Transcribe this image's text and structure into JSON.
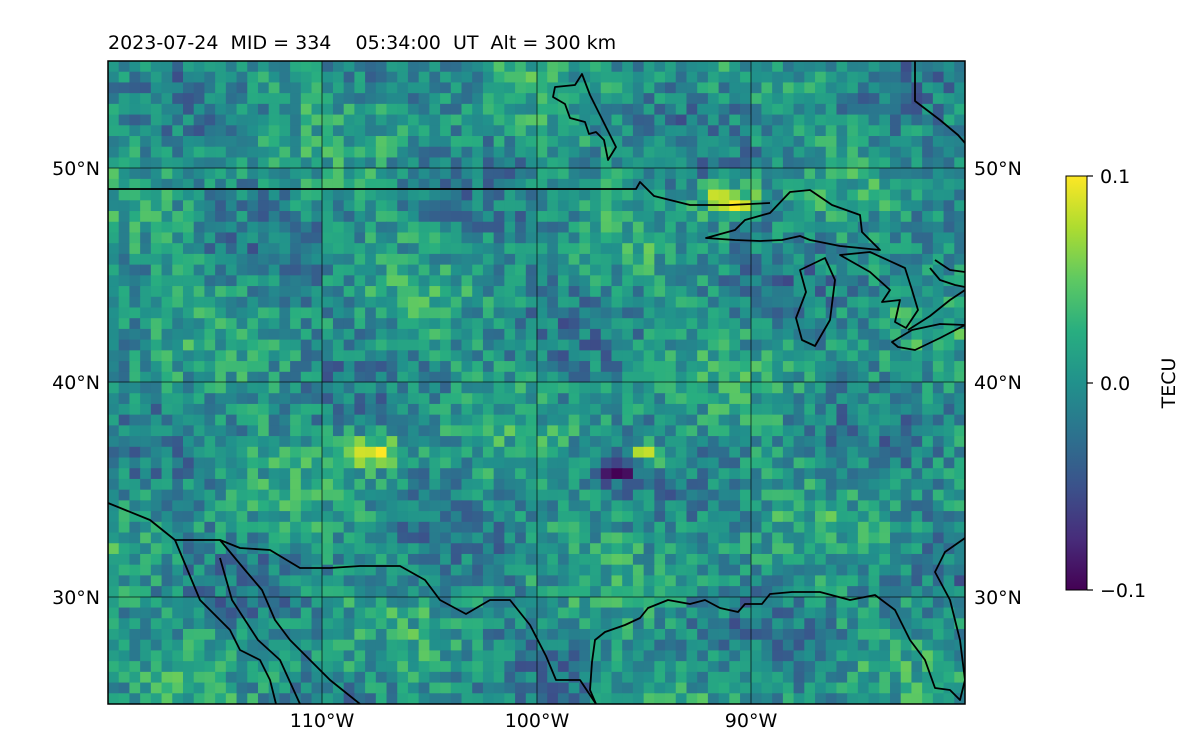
{
  "title": "2023-07-24  MID = 334    05:34:00  UT  Alt = 300 km",
  "map": {
    "projection": "PlateCarree",
    "lon_range": [
      -120,
      -80
    ],
    "lat_range": [
      25,
      55
    ],
    "parallels": [
      30,
      40,
      50
    ],
    "meridians": [
      -110,
      -100,
      -90
    ],
    "lat_labels": [
      "30°N",
      "40°N",
      "50°N"
    ],
    "lon_labels": [
      "110°W",
      "100°W",
      "90°W"
    ],
    "lat_labels_on": "left and right",
    "lon_labels_on": "bottom",
    "gridlines": true,
    "coastlines": true
  },
  "field": {
    "quantity": "TEC perturbation",
    "colormap": "viridis",
    "vmin": -0.1,
    "vmax": 0.1,
    "notable_features": [
      {
        "label": "positive band",
        "lat": 48.5,
        "lon": -91,
        "level": 0.1
      },
      {
        "label": "positive patch",
        "lat": 36.5,
        "lon": -95,
        "level": 0.1
      },
      {
        "label": "negative patch",
        "lat": 36,
        "lon": -96,
        "level": -0.1
      },
      {
        "label": "positive patch",
        "lat": 36.8,
        "lon": -107.8,
        "level": 0.1
      }
    ]
  },
  "colorbar": {
    "label": "TECU",
    "ticks": [
      "0.1",
      "0.0",
      "−0.1"
    ],
    "orientation": "vertical",
    "placement": "right"
  }
}
